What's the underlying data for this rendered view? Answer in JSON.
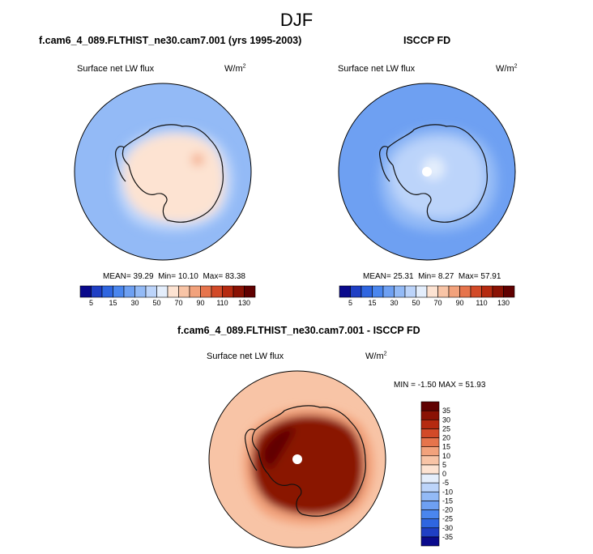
{
  "figure": {
    "title": "DJF"
  },
  "panels": [
    {
      "id": "model",
      "title": "f.cam6_4_089.FLTHIST_ne30.cam7.001 (yrs 1995-2003)",
      "variable": "Surface net LW flux",
      "units": "W/m",
      "units_exp": "2",
      "stats": {
        "mean_label": "MEAN=",
        "mean": "39.29",
        "min_label": "Min=",
        "min": "10.10",
        "max_label": "Max=",
        "max": "83.38"
      }
    },
    {
      "id": "obs",
      "title": "ISCCP FD",
      "variable": "Surface net LW flux",
      "units": "W/m",
      "units_exp": "2",
      "stats": {
        "mean_label": "MEAN=",
        "mean": "25.31",
        "min_label": "Min=",
        "min": "8.27",
        "max_label": "Max=",
        "max": "57.91"
      }
    },
    {
      "id": "diff",
      "title": "f.cam6_4_089.FLTHIST_ne30.cam7.001 - ISCCP FD",
      "variable": "Surface net LW flux",
      "units": "W/m",
      "units_exp": "2",
      "stats_text": "MIN = -1.50 MAX = 51.93"
    }
  ],
  "chart_data": {
    "type": "heatmap",
    "projection": "south polar stereographic",
    "season": "DJF",
    "variable": "Surface net LW flux",
    "units": "W/m2",
    "maps": [
      {
        "name": "f.cam6_4_089.FLTHIST_ne30.cam7.001 (yrs 1995-2003)",
        "mean": 39.29,
        "min": 10.1,
        "max": 83.38,
        "ocean_value": 30,
        "ice_edge_value": 45,
        "continent_value": 65,
        "hotspot_value": 80
      },
      {
        "name": "ISCCP FD",
        "mean": 25.31,
        "min": 8.27,
        "max": 57.91,
        "ocean_value": 20,
        "ice_edge_value": 30,
        "continent_value": 45,
        "hotspot_value": 55
      },
      {
        "name": "f.cam6_4_089.FLTHIST_ne30.cam7.001 - ISCCP FD",
        "min": -1.5,
        "max": 51.93,
        "ocean_value": 5,
        "ice_edge_value": 10,
        "continent_value": 30,
        "hotspot_value": 40
      }
    ],
    "colorbar_abs": {
      "levels": [
        5,
        10,
        15,
        20,
        30,
        40,
        50,
        60,
        70,
        80,
        90,
        100,
        110,
        120,
        130
      ],
      "tick_labels": [
        "5",
        "15",
        "30",
        "50",
        "70",
        "90",
        "110",
        "130"
      ],
      "colors": [
        "#0a0a8c",
        "#1f3fc4",
        "#2f66e0",
        "#4a86ee",
        "#6ea0f2",
        "#93baf6",
        "#bcd4fa",
        "#e4eefc",
        "#fde3d2",
        "#f8c4a6",
        "#f2a27c",
        "#e6744c",
        "#d24a28",
        "#b52a10",
        "#8a1204",
        "#600000"
      ]
    },
    "colorbar_diff": {
      "levels": [
        -35,
        -30,
        -25,
        -20,
        -15,
        -10,
        -5,
        0,
        5,
        10,
        15,
        20,
        25,
        30,
        35
      ],
      "tick_labels": [
        "35",
        "30",
        "25",
        "20",
        "15",
        "10",
        "5",
        "0",
        "-5",
        "-10",
        "-15",
        "-20",
        "-25",
        "-30",
        "-35"
      ],
      "colors": [
        "#0a0a8c",
        "#1f3fc4",
        "#2f66e0",
        "#4a86ee",
        "#6ea0f2",
        "#93baf6",
        "#bcd4fa",
        "#e4eefc",
        "#fde3d2",
        "#f8c4a6",
        "#f2a27c",
        "#e6744c",
        "#d24a28",
        "#b52a10",
        "#8a1204",
        "#600000"
      ]
    }
  }
}
